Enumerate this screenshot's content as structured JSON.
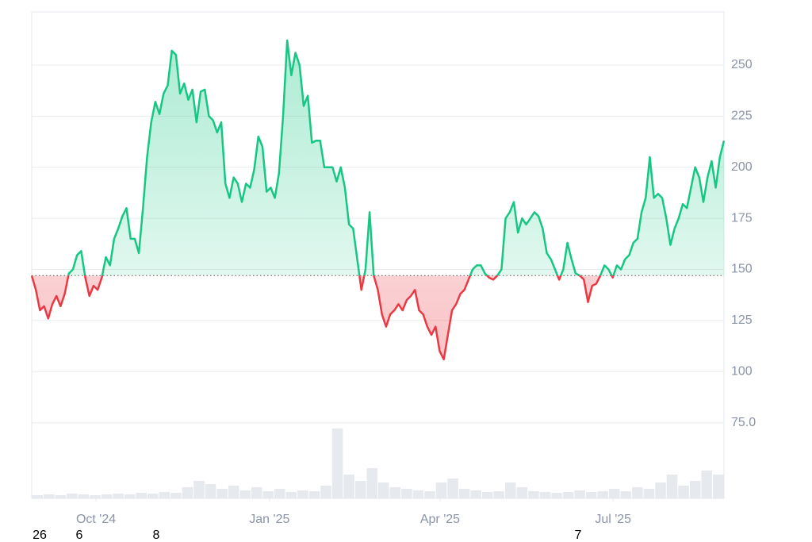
{
  "chart_data": {
    "type": "baseline-area",
    "series": [
      {
        "values": [
          147,
          140,
          130,
          132,
          126,
          133,
          137,
          132,
          138,
          148,
          150,
          157,
          159,
          146,
          137,
          142,
          140,
          146,
          156,
          152,
          165,
          170,
          176,
          180,
          165,
          165,
          158,
          180,
          205,
          222,
          232,
          226,
          236,
          240,
          257,
          255,
          236,
          241,
          233,
          238,
          222,
          237,
          238,
          225,
          223,
          217,
          222,
          192,
          185,
          195,
          192,
          183,
          192,
          190,
          199,
          215,
          210,
          188,
          190,
          185,
          197,
          225,
          262,
          245,
          256,
          250,
          230,
          235,
          212,
          213,
          213,
          200,
          200,
          200,
          193,
          200,
          190,
          172,
          170,
          155,
          140,
          150,
          178,
          147,
          140,
          128,
          122,
          128,
          130,
          133,
          130,
          135,
          137,
          140,
          130,
          128,
          122,
          118,
          122,
          110,
          106,
          118,
          130,
          133,
          138,
          140,
          145,
          150,
          152,
          152,
          148,
          146,
          145,
          147,
          150,
          175,
          178,
          183,
          168,
          175,
          172,
          175,
          178,
          176,
          170,
          158,
          155,
          150,
          145,
          150,
          163,
          155,
          148,
          147,
          145,
          134,
          142,
          143,
          147,
          152,
          150,
          146,
          152,
          150,
          155,
          157,
          163,
          165,
          178,
          185,
          205,
          185,
          187,
          185,
          175,
          162,
          170,
          175,
          182,
          180,
          190,
          200,
          195,
          183,
          195,
          203,
          190,
          205,
          213
        ],
        "up_color": "#16c784",
        "down_color": "#ea3943"
      }
    ],
    "baseline": 147,
    "volume": [
      4,
      5,
      4,
      6,
      5,
      4,
      5,
      6,
      5,
      7,
      6,
      8,
      7,
      14,
      22,
      18,
      12,
      16,
      10,
      14,
      9,
      12,
      8,
      10,
      9,
      16,
      88,
      30,
      22,
      38,
      20,
      14,
      12,
      10,
      9,
      20,
      25,
      12,
      10,
      8,
      9,
      20,
      14,
      9,
      8,
      7,
      8,
      10,
      8,
      9,
      12,
      9,
      14,
      12,
      20,
      30,
      16,
      22,
      35,
      30
    ],
    "volume_lim": [
      0,
      100
    ],
    "xlim": [
      0,
      168
    ],
    "xticks": [
      {
        "value": 15.6,
        "label": "Oct '24"
      },
      {
        "value": 57.7,
        "label": "Jan '25"
      },
      {
        "value": 99.1,
        "label": "Apr '25"
      },
      {
        "value": 141.1,
        "label": "Jul '25"
      }
    ],
    "ylim": [
      38,
      276
    ],
    "yticks": [
      {
        "value": 75,
        "label": "75.0"
      },
      100,
      125,
      150,
      175,
      200,
      225,
      250
    ],
    "grid": true,
    "bottom_labels": [
      "26",
      "6",
      "8",
      "7"
    ]
  }
}
